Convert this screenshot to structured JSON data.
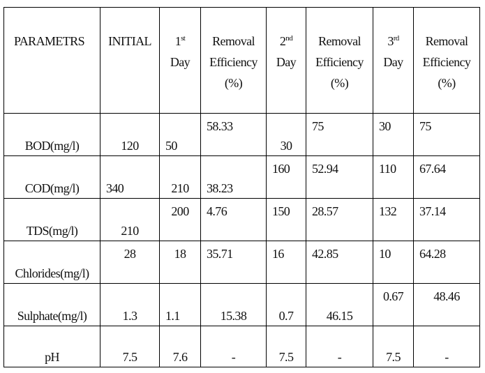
{
  "table": {
    "header": [
      {
        "text": "PARAMETRS"
      },
      {
        "text": "INITIAL"
      },
      {
        "text": "1",
        "sup": "st",
        "line2": "Day"
      },
      {
        "lines": [
          "Removal",
          "Efficiency",
          "(%)"
        ]
      },
      {
        "text": "2",
        "sup": "nd",
        "line2": "Day"
      },
      {
        "lines": [
          "Removal",
          "Efficiency",
          "(%)"
        ]
      },
      {
        "text": "3",
        "sup": "rd",
        "line2": "Day"
      },
      {
        "lines": [
          "Removal",
          "Efficiency",
          "(%)"
        ]
      }
    ],
    "rows": [
      [
        "BOD(mg/l)",
        "120",
        "50",
        "58.33",
        "30",
        "75",
        "30",
        "75"
      ],
      [
        "COD(mg/l)",
        "340",
        "210",
        "38.23",
        "160",
        "52.94",
        "110",
        "67.64"
      ],
      [
        "TDS(mg/l)",
        "210",
        "200",
        "4.76",
        "150",
        "28.57",
        "132",
        "37.14"
      ],
      [
        "Chlorides(mg/l)",
        "28",
        "18",
        "35.71",
        "16",
        "42.85",
        "10",
        "64.28"
      ],
      [
        "Sulphate(mg/l)",
        "1.3",
        "1.1",
        "15.38",
        "0.7",
        "46.15",
        "0.67",
        "48.46"
      ],
      [
        "pH",
        "7.5",
        "7.6",
        "-",
        "7.5",
        "-",
        "7.5",
        "-"
      ]
    ]
  }
}
